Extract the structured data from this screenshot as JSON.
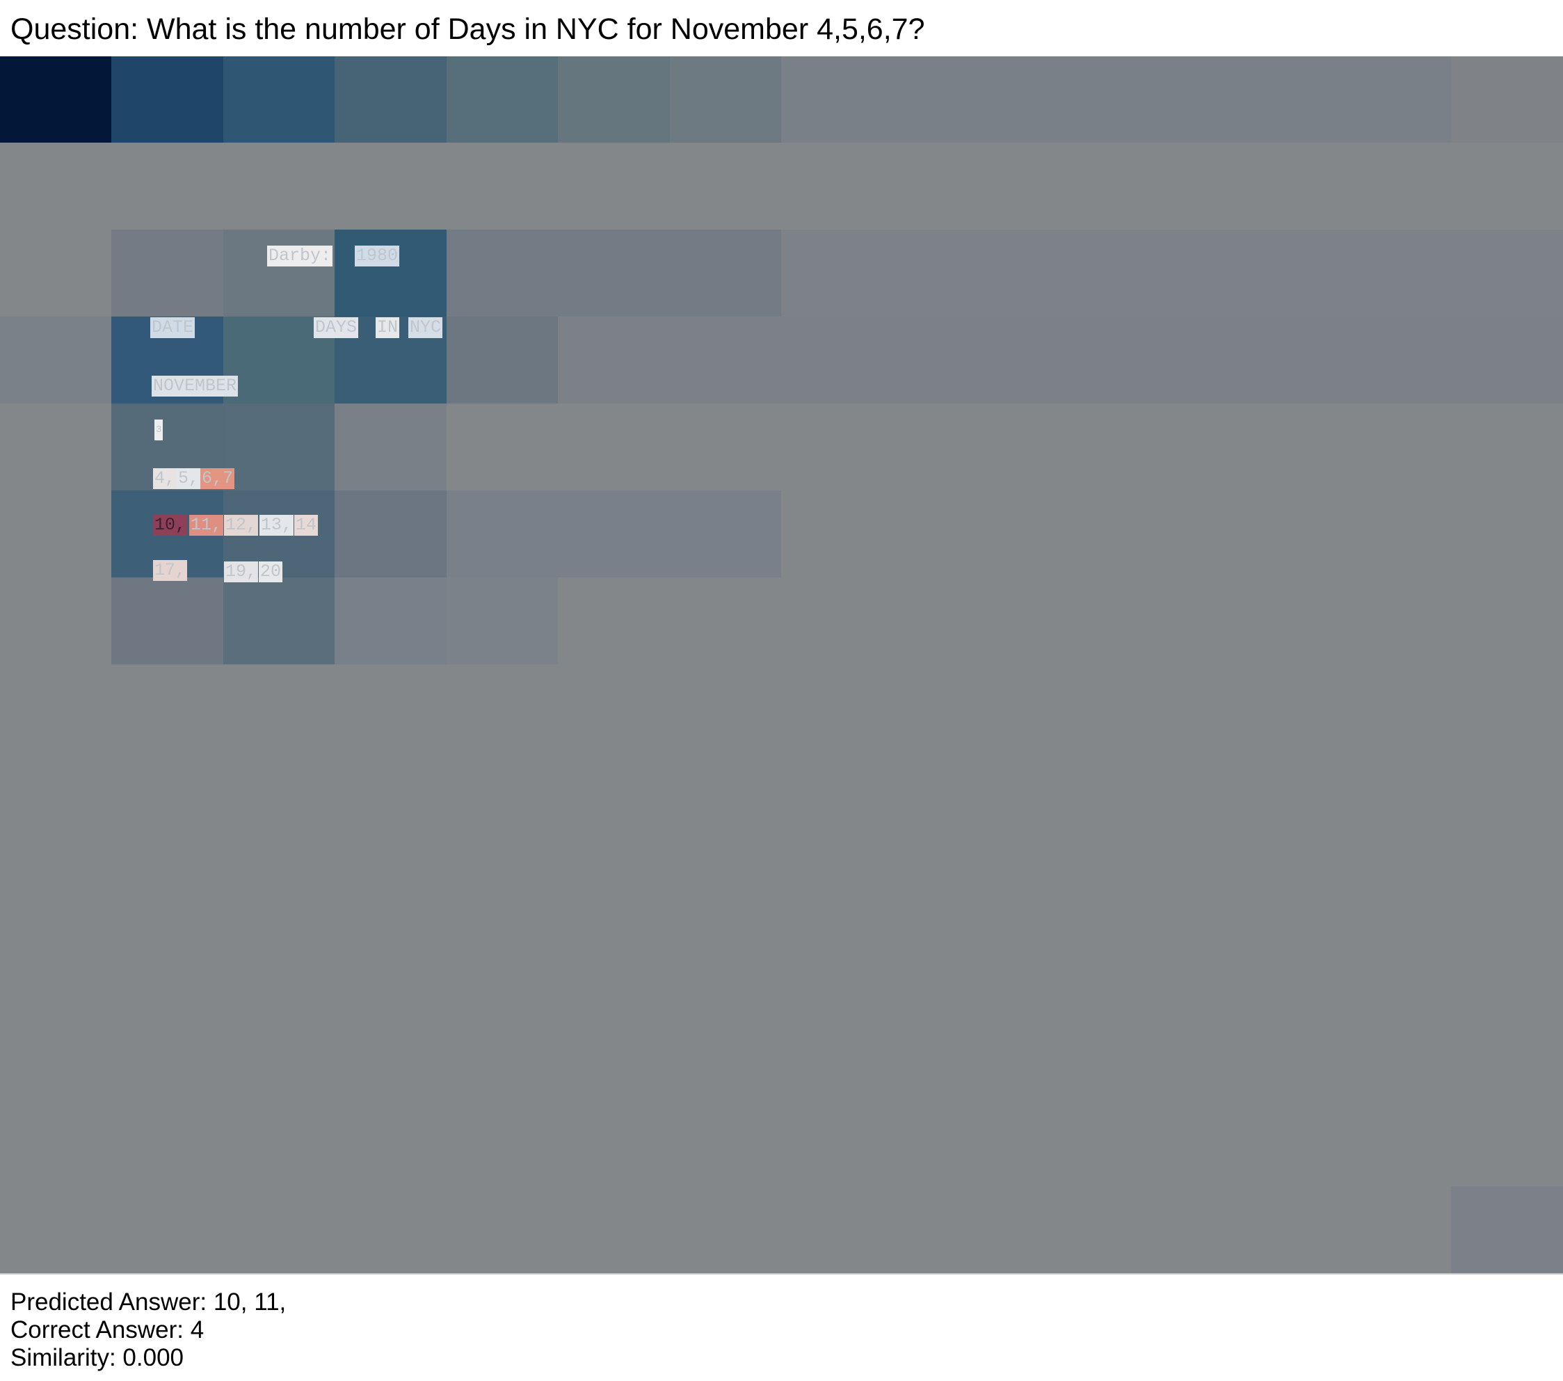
{
  "question": {
    "label": "Question:",
    "text": "What is the number of Days in NYC for November 4,5,6,7?"
  },
  "tokens": [
    {
      "text": "Darby:",
      "color": "#ededed"
    },
    {
      "text": "1980",
      "color": "#cfdbe6"
    },
    {
      "text": "DATE",
      "color": "#cfdbe6"
    },
    {
      "text": "DAYS",
      "color": "#e1e5ea"
    },
    {
      "text": "IN",
      "color": "#e6e8ea"
    },
    {
      "text": "NYC",
      "color": "#d5dee6"
    },
    {
      "text": "NOVEMBER",
      "color": "#dbe2e8"
    },
    {
      "text": "3",
      "color": "#eeeeee"
    },
    {
      "text": "4,",
      "color": "#e8e3e3"
    },
    {
      "text": "5,",
      "color": "#e4e7ea"
    },
    {
      "text": "6,7",
      "color": "#e39582"
    },
    {
      "text": "10,",
      "color": "#8f4059"
    },
    {
      "text": "11,",
      "color": "#df8e82"
    },
    {
      "text": "12,",
      "color": "#e4d6d3"
    },
    {
      "text": "13,",
      "color": "#e4e7ea"
    },
    {
      "text": "14",
      "color": "#e8d9d6"
    },
    {
      "text": "17,",
      "color": "#e6d4d0"
    },
    {
      "text": "19,",
      "color": "#e4e4e6"
    },
    {
      "text": "20",
      "color": "#e6e8ea"
    }
  ],
  "results": {
    "predicted_label": "Predicted Answer:",
    "predicted": "10, 11,",
    "correct_label": "Correct Answer:",
    "correct": "4",
    "similarity_label": "Similarity:",
    "similarity": "0.000"
  }
}
